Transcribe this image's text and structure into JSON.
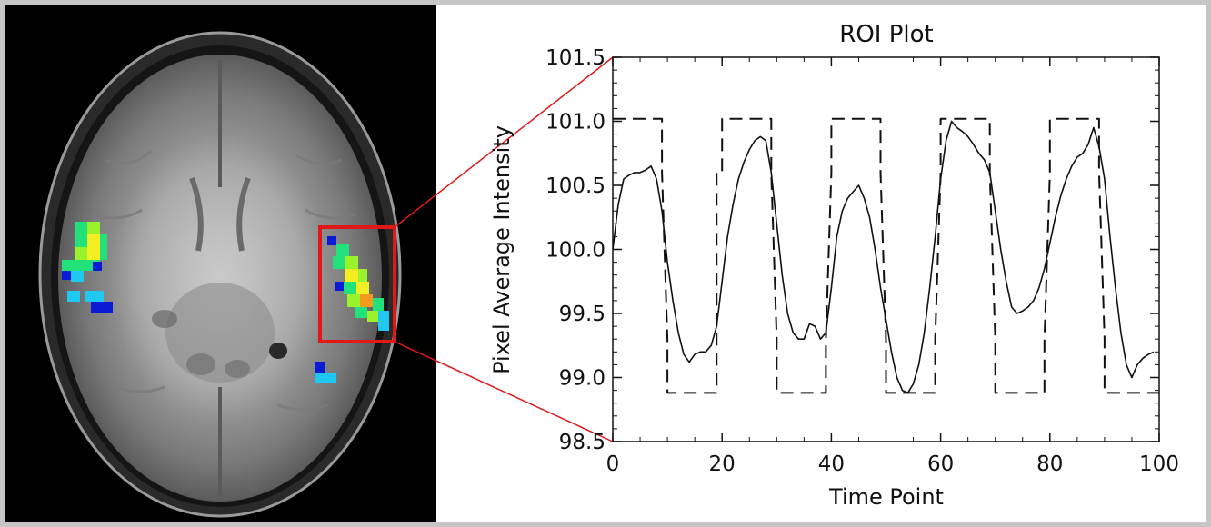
{
  "image": {
    "description_free": true,
    "roi_box_color": "#e01818",
    "connector_color": "#e01818",
    "activation_colors": [
      "#0a1bd8",
      "#1fc8f0",
      "#22e07a",
      "#9af22a",
      "#f2ee22",
      "#f59a1a"
    ]
  },
  "chart_data": {
    "type": "line",
    "title": "ROI Plot",
    "xlabel": "Time Point",
    "ylabel": "Pixel Average Intensity",
    "xlim": [
      0,
      100
    ],
    "ylim": [
      98.5,
      101.5
    ],
    "xticks": [
      0,
      20,
      40,
      60,
      80,
      100
    ],
    "xtick_labels": [
      "0",
      "20",
      "40",
      "60",
      "80",
      "100"
    ],
    "yticks": [
      98.5,
      99.0,
      99.5,
      100.0,
      100.5,
      101.0,
      101.5
    ],
    "ytick_labels": [
      "98.5",
      "99.0",
      "99.5",
      "100.0",
      "100.5",
      "101.0",
      "101.5"
    ],
    "grid": false,
    "legend": "none",
    "series": [
      {
        "style": "solid",
        "x": [
          0,
          1,
          2,
          3,
          4,
          5,
          6,
          7,
          8,
          9,
          10,
          11,
          12,
          13,
          14,
          15,
          16,
          17,
          18,
          19,
          20,
          21,
          22,
          23,
          24,
          25,
          26,
          27,
          28,
          29,
          30,
          31,
          32,
          33,
          34,
          35,
          36,
          37,
          38,
          39,
          40,
          41,
          42,
          43,
          44,
          45,
          46,
          47,
          48,
          49,
          50,
          51,
          52,
          53,
          54,
          55,
          56,
          57,
          58,
          59,
          60,
          61,
          62,
          63,
          64,
          65,
          66,
          67,
          68,
          69,
          70,
          71,
          72,
          73,
          74,
          75,
          76,
          77,
          78,
          79,
          80,
          81,
          82,
          83,
          84,
          85,
          86,
          87,
          88,
          89,
          90,
          91,
          92,
          93,
          94,
          95,
          96,
          97,
          98,
          99
        ],
        "values": [
          100.0,
          100.35,
          100.55,
          100.58,
          100.6,
          100.6,
          100.62,
          100.65,
          100.55,
          100.3,
          99.9,
          99.6,
          99.35,
          99.18,
          99.12,
          99.18,
          99.2,
          99.2,
          99.25,
          99.4,
          99.75,
          100.1,
          100.35,
          100.55,
          100.68,
          100.78,
          100.85,
          100.88,
          100.85,
          100.6,
          100.2,
          99.8,
          99.5,
          99.35,
          99.3,
          99.3,
          99.42,
          99.4,
          99.3,
          99.35,
          99.7,
          100.1,
          100.3,
          100.4,
          100.45,
          100.5,
          100.4,
          100.25,
          100.0,
          99.7,
          99.45,
          99.2,
          99.0,
          98.9,
          98.88,
          98.95,
          99.1,
          99.35,
          99.7,
          100.1,
          100.55,
          100.85,
          101.0,
          100.95,
          100.92,
          100.88,
          100.82,
          100.75,
          100.7,
          100.6,
          100.3,
          100.0,
          99.75,
          99.55,
          99.5,
          99.52,
          99.55,
          99.6,
          99.7,
          99.85,
          100.05,
          100.25,
          100.42,
          100.55,
          100.65,
          100.72,
          100.75,
          100.82,
          100.95,
          100.8,
          100.55,
          100.1,
          99.7,
          99.35,
          99.1,
          99.0,
          99.1,
          99.15,
          99.18,
          99.2
        ]
      },
      {
        "style": "dashed",
        "x": [
          0,
          9,
          9,
          10,
          10,
          19,
          19,
          20,
          20,
          29,
          29,
          30,
          30,
          39,
          39,
          40,
          40,
          49,
          49,
          50,
          50,
          59,
          59,
          60,
          60,
          69,
          69,
          70,
          70,
          79,
          79,
          80,
          80,
          89,
          89,
          90,
          90,
          100
        ],
        "values": [
          101.02,
          101.02,
          100.6,
          99.3,
          98.88,
          98.88,
          100.6,
          100.6,
          101.02,
          101.02,
          100.6,
          99.3,
          98.88,
          98.88,
          99.3,
          100.6,
          101.02,
          101.02,
          100.6,
          99.3,
          98.88,
          98.88,
          99.3,
          100.6,
          101.02,
          101.02,
          100.6,
          99.3,
          98.88,
          98.88,
          99.3,
          100.6,
          101.02,
          101.02,
          100.6,
          99.3,
          98.88,
          98.88
        ]
      }
    ]
  }
}
